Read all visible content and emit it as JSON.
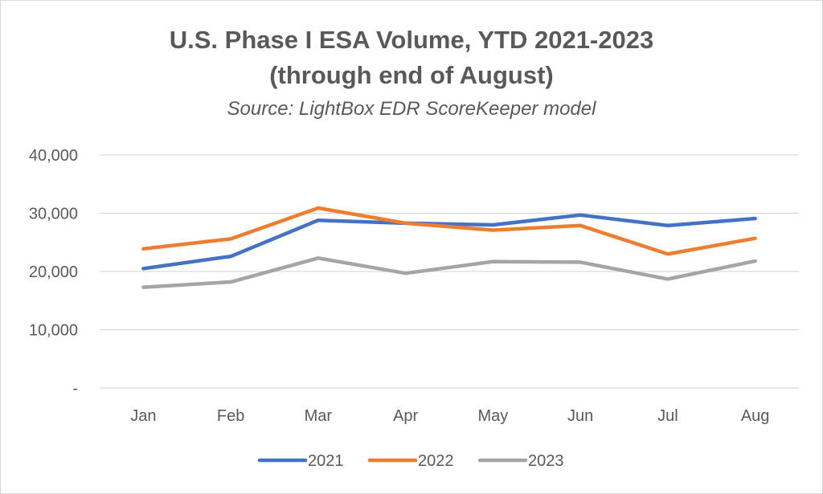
{
  "chart_data": {
    "type": "line",
    "title_line1": "U.S. Phase I ESA Volume, YTD 2021-2023",
    "title_line2": "(through end of August)",
    "subtitle": "Source: LightBox EDR ScoreKeeper model",
    "categories": [
      "Jan",
      "Feb",
      "Mar",
      "Apr",
      "May",
      "Jun",
      "Jul",
      "Aug"
    ],
    "yticks": [
      {
        "value": 0,
        "label": "-"
      },
      {
        "value": 10000,
        "label": "10,000"
      },
      {
        "value": 20000,
        "label": "20,000"
      },
      {
        "value": 30000,
        "label": "30,000"
      },
      {
        "value": 40000,
        "label": "40,000"
      }
    ],
    "ylim": [
      0,
      40000
    ],
    "grid": true,
    "legend_position": "bottom",
    "series": [
      {
        "name": "2021",
        "color": "#4472C4",
        "values": [
          20500,
          22600,
          28800,
          28300,
          28000,
          29700,
          27900,
          29100
        ]
      },
      {
        "name": "2022",
        "color": "#ED7D31",
        "values": [
          23900,
          25600,
          30900,
          28300,
          27100,
          27900,
          23000,
          25700
        ]
      },
      {
        "name": "2023",
        "color": "#A5A5A5",
        "values": [
          17300,
          18200,
          22300,
          19700,
          21700,
          21600,
          18700,
          21800
        ]
      }
    ]
  }
}
